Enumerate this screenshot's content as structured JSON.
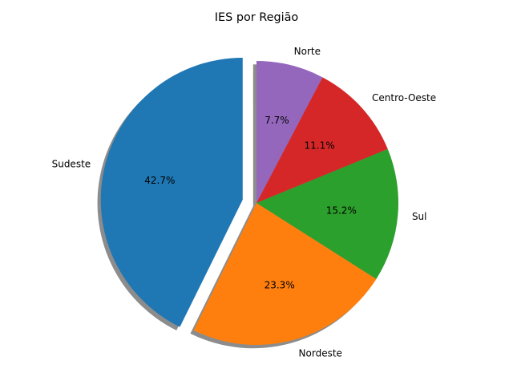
{
  "chart_data": {
    "type": "pie",
    "title": "IES por Região",
    "slices": [
      {
        "label": "Sudeste",
        "pct_label": "42.7%",
        "value": 42.7,
        "color": "#1f77b4",
        "exploded": true
      },
      {
        "label": "Nordeste",
        "pct_label": "23.3%",
        "value": 23.3,
        "color": "#ff7f0e",
        "exploded": false
      },
      {
        "label": "Sul",
        "pct_label": "15.2%",
        "value": 15.2,
        "color": "#2ca02c",
        "exploded": false
      },
      {
        "label": "Centro-Oeste",
        "pct_label": "11.1%",
        "value": 11.1,
        "color": "#d62728",
        "exploded": false
      },
      {
        "label": "Norte",
        "pct_label": "7.7%",
        "value": 7.7,
        "color": "#9467bd",
        "exploded": false
      }
    ],
    "start_angle_deg": 90,
    "direction": "counterclockwise",
    "shadow": true,
    "legend": "none"
  }
}
